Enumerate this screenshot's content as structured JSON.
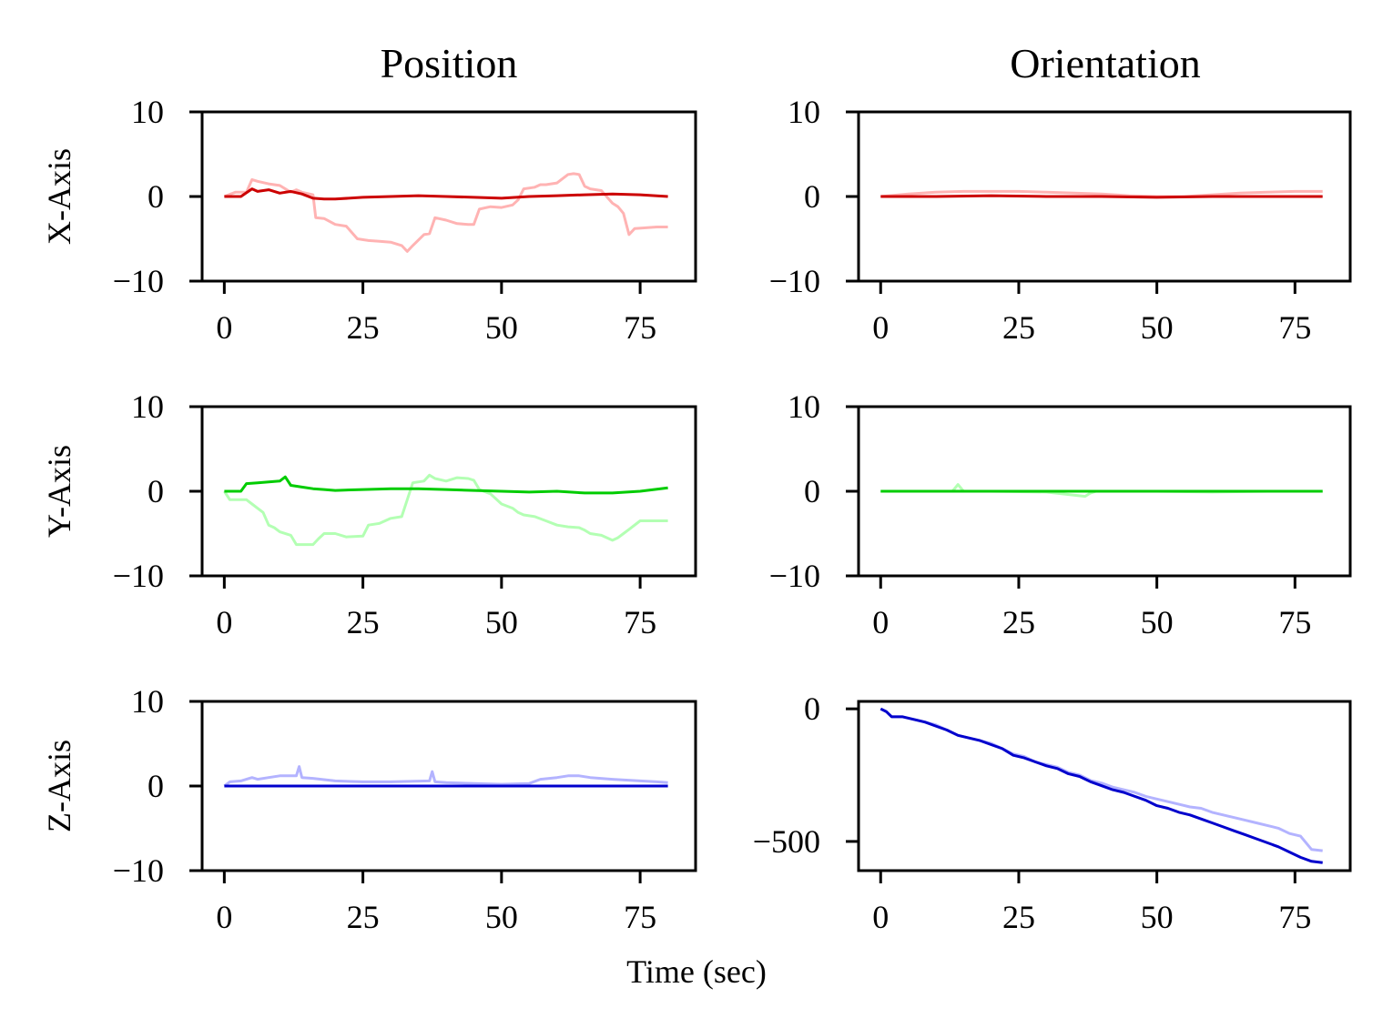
{
  "figure": {
    "column_titles": [
      "Position",
      "Orientation"
    ],
    "row_labels": [
      "X-Axis",
      "Y-Axis",
      "Z-Axis"
    ],
    "xlabel": "Time (sec)"
  },
  "chart_data": [
    {
      "type": "line",
      "row": 0,
      "col": 0,
      "grid": false,
      "xlim": [
        -4,
        85
      ],
      "ylim": [
        -10,
        10
      ],
      "xticks": [
        0,
        25,
        50,
        75
      ],
      "yticks": [
        -10,
        0,
        10
      ],
      "series": [
        {
          "color": "#ffb3b3",
          "x": [
            0,
            2,
            4,
            5,
            6,
            8,
            10,
            12,
            13,
            14,
            16,
            16.5,
            18,
            20,
            22,
            24,
            26,
            28,
            30,
            32,
            33,
            34,
            36,
            37,
            38,
            40,
            42,
            44,
            45,
            46,
            48,
            50,
            52,
            53,
            54,
            56,
            57,
            58,
            60,
            62,
            63,
            64,
            65,
            66,
            68,
            70,
            71,
            72,
            73,
            74,
            76,
            78,
            80
          ],
          "y": [
            0,
            0.5,
            0.5,
            2,
            1.8,
            1.5,
            1.3,
            0.5,
            0.8,
            0.5,
            0.2,
            -2.5,
            -2.6,
            -3.3,
            -3.5,
            -5,
            -5.2,
            -5.3,
            -5.4,
            -5.8,
            -6.5,
            -5.8,
            -4.5,
            -4.4,
            -2.5,
            -2.8,
            -3.2,
            -3.3,
            -3.3,
            -1.5,
            -1.2,
            -1.3,
            -1.0,
            -0.4,
            0.9,
            1.1,
            1.4,
            1.4,
            1.6,
            2.6,
            2.7,
            2.6,
            1.2,
            0.9,
            0.7,
            -0.8,
            -1.2,
            -2.0,
            -4.5,
            -3.8,
            -3.7,
            -3.6,
            -3.6
          ]
        },
        {
          "color": "#cc0000",
          "x": [
            0,
            3,
            5,
            6,
            8,
            10,
            12,
            14,
            16,
            18,
            20,
            25,
            30,
            35,
            40,
            45,
            50,
            55,
            60,
            65,
            70,
            75,
            80
          ],
          "y": [
            0,
            0,
            0.9,
            0.6,
            0.8,
            0.4,
            0.6,
            0.3,
            -0.2,
            -0.3,
            -0.3,
            -0.1,
            0,
            0.1,
            0,
            -0.1,
            -0.2,
            0,
            0.1,
            0.2,
            0.3,
            0.2,
            0
          ]
        }
      ]
    },
    {
      "type": "line",
      "row": 0,
      "col": 1,
      "grid": false,
      "xlim": [
        -4,
        85
      ],
      "ylim": [
        -10,
        10
      ],
      "xticks": [
        0,
        25,
        50,
        75
      ],
      "yticks": [
        -10,
        0,
        10
      ],
      "series": [
        {
          "color": "#ffb3b3",
          "x": [
            0,
            5,
            10,
            15,
            20,
            25,
            30,
            35,
            40,
            45,
            50,
            55,
            60,
            65,
            70,
            75,
            80
          ],
          "y": [
            0,
            0.3,
            0.5,
            0.6,
            0.6,
            0.6,
            0.5,
            0.4,
            0.3,
            0.1,
            0,
            0,
            0.2,
            0.4,
            0.5,
            0.6,
            0.6
          ]
        },
        {
          "color": "#cc0000",
          "x": [
            0,
            10,
            20,
            30,
            40,
            50,
            60,
            70,
            80
          ],
          "y": [
            0,
            0,
            0.1,
            0,
            0,
            -0.1,
            0,
            0,
            0
          ]
        }
      ]
    },
    {
      "type": "line",
      "row": 1,
      "col": 0,
      "grid": false,
      "xlim": [
        -4,
        85
      ],
      "ylim": [
        -10,
        10
      ],
      "xticks": [
        0,
        25,
        50,
        75
      ],
      "yticks": [
        -10,
        0,
        10
      ],
      "series": [
        {
          "color": "#b3ffb3",
          "x": [
            0,
            1,
            4,
            5,
            7,
            8,
            9,
            10,
            12,
            13,
            16,
            17,
            18,
            20,
            22,
            25,
            26,
            28,
            30,
            32,
            33,
            34,
            36,
            37,
            38,
            40,
            42,
            44,
            45,
            46,
            48,
            50,
            52,
            53,
            54,
            56,
            58,
            60,
            62,
            64,
            65,
            66,
            68,
            70,
            71,
            72,
            73,
            75,
            78,
            80
          ],
          "y": [
            0,
            -1,
            -1,
            -1.5,
            -2.5,
            -4.0,
            -4.3,
            -4.8,
            -5.2,
            -6.3,
            -6.3,
            -5.6,
            -5.0,
            -5.0,
            -5.4,
            -5.3,
            -4.0,
            -3.8,
            -3.2,
            -3.0,
            -1.0,
            1.0,
            1.2,
            1.9,
            1.5,
            1.2,
            1.6,
            1.5,
            1.3,
            0.2,
            -0.3,
            -1.5,
            -2.0,
            -2.5,
            -2.8,
            -3.0,
            -3.5,
            -4.0,
            -4.2,
            -4.3,
            -4.6,
            -5.0,
            -5.2,
            -5.8,
            -5.5,
            -5.0,
            -4.5,
            -3.5,
            -3.5,
            -3.5
          ]
        },
        {
          "color": "#00cc00",
          "x": [
            0,
            3,
            4,
            6,
            8,
            10,
            11,
            12,
            14,
            16,
            18,
            20,
            25,
            30,
            35,
            40,
            45,
            50,
            55,
            60,
            65,
            70,
            75,
            80
          ],
          "y": [
            0,
            0,
            0.9,
            1.0,
            1.1,
            1.2,
            1.7,
            0.7,
            0.5,
            0.3,
            0.2,
            0.1,
            0.2,
            0.3,
            0.3,
            0.2,
            0.1,
            0,
            -0.1,
            0,
            -0.2,
            -0.2,
            0,
            0.4
          ]
        }
      ]
    },
    {
      "type": "line",
      "row": 1,
      "col": 1,
      "grid": false,
      "xlim": [
        -4,
        85
      ],
      "ylim": [
        -10,
        10
      ],
      "xticks": [
        0,
        25,
        50,
        75
      ],
      "yticks": [
        -10,
        0,
        10
      ],
      "series": [
        {
          "color": "#b3ffb3",
          "x": [
            0,
            10,
            13,
            14,
            15,
            20,
            30,
            37,
            38,
            39,
            50,
            60,
            70,
            80
          ],
          "y": [
            0,
            0,
            0,
            0.8,
            0,
            0,
            -0.1,
            -0.6,
            -0.2,
            0,
            0,
            -0.1,
            0,
            0
          ]
        },
        {
          "color": "#00cc00",
          "x": [
            0,
            20,
            40,
            60,
            80
          ],
          "y": [
            0,
            0,
            0,
            0,
            0
          ]
        }
      ]
    },
    {
      "type": "line",
      "row": 2,
      "col": 0,
      "grid": false,
      "xlim": [
        -4,
        85
      ],
      "ylim": [
        -10,
        10
      ],
      "xticks": [
        0,
        25,
        50,
        75
      ],
      "yticks": [
        -10,
        0,
        10
      ],
      "series": [
        {
          "color": "#b3b3ff",
          "x": [
            0,
            1,
            3,
            5,
            6,
            8,
            10,
            13,
            13.5,
            14,
            16,
            20,
            25,
            30,
            37,
            37.5,
            38,
            40,
            45,
            50,
            55,
            57,
            60,
            62,
            64,
            66,
            70,
            75,
            78,
            80
          ],
          "y": [
            0,
            0.5,
            0.6,
            1.0,
            0.8,
            1.0,
            1.2,
            1.2,
            2.3,
            1.0,
            0.9,
            0.6,
            0.5,
            0.5,
            0.6,
            1.7,
            0.5,
            0.4,
            0.3,
            0.2,
            0.3,
            0.8,
            1.0,
            1.2,
            1.2,
            1.0,
            0.8,
            0.6,
            0.5,
            0.4
          ]
        },
        {
          "color": "#0000cc",
          "x": [
            0,
            20,
            40,
            60,
            80
          ],
          "y": [
            0,
            0,
            0,
            0,
            0
          ]
        }
      ]
    },
    {
      "type": "line",
      "row": 2,
      "col": 1,
      "grid": false,
      "xlim": [
        -4,
        85
      ],
      "ylim": [
        -610,
        28
      ],
      "xticks": [
        0,
        25,
        50,
        75
      ],
      "yticks": [
        -500,
        0
      ],
      "series": [
        {
          "color": "#b3b3ff",
          "x": [
            0,
            1,
            2,
            4,
            6,
            8,
            10,
            12,
            14,
            16,
            18,
            20,
            22,
            24,
            26,
            28,
            30,
            32,
            34,
            36,
            38,
            40,
            42,
            44,
            46,
            48,
            50,
            52,
            54,
            56,
            58,
            60,
            62,
            64,
            66,
            68,
            70,
            72,
            74,
            76,
            78,
            80
          ],
          "y": [
            0,
            -10,
            -30,
            -30,
            -40,
            -50,
            -60,
            -80,
            -100,
            -110,
            -120,
            -130,
            -150,
            -170,
            -180,
            -200,
            -210,
            -220,
            -240,
            -250,
            -270,
            -280,
            -295,
            -305,
            -315,
            -330,
            -340,
            -350,
            -360,
            -370,
            -375,
            -390,
            -400,
            -410,
            -420,
            -430,
            -440,
            -450,
            -470,
            -480,
            -530,
            -535
          ]
        },
        {
          "color": "#0000cc",
          "x": [
            0,
            1,
            2,
            4,
            6,
            8,
            10,
            12,
            14,
            16,
            18,
            20,
            22,
            24,
            26,
            28,
            30,
            32,
            34,
            36,
            38,
            40,
            42,
            44,
            46,
            48,
            50,
            52,
            54,
            56,
            58,
            60,
            62,
            64,
            66,
            68,
            70,
            72,
            74,
            76,
            78,
            80
          ],
          "y": [
            0,
            -10,
            -30,
            -30,
            -40,
            -50,
            -65,
            -80,
            -100,
            -110,
            -120,
            -135,
            -150,
            -175,
            -185,
            -200,
            -215,
            -225,
            -245,
            -255,
            -275,
            -290,
            -305,
            -315,
            -330,
            -345,
            -365,
            -375,
            -390,
            -400,
            -415,
            -430,
            -445,
            -460,
            -475,
            -490,
            -505,
            -520,
            -540,
            -560,
            -575,
            -580
          ]
        }
      ]
    }
  ]
}
